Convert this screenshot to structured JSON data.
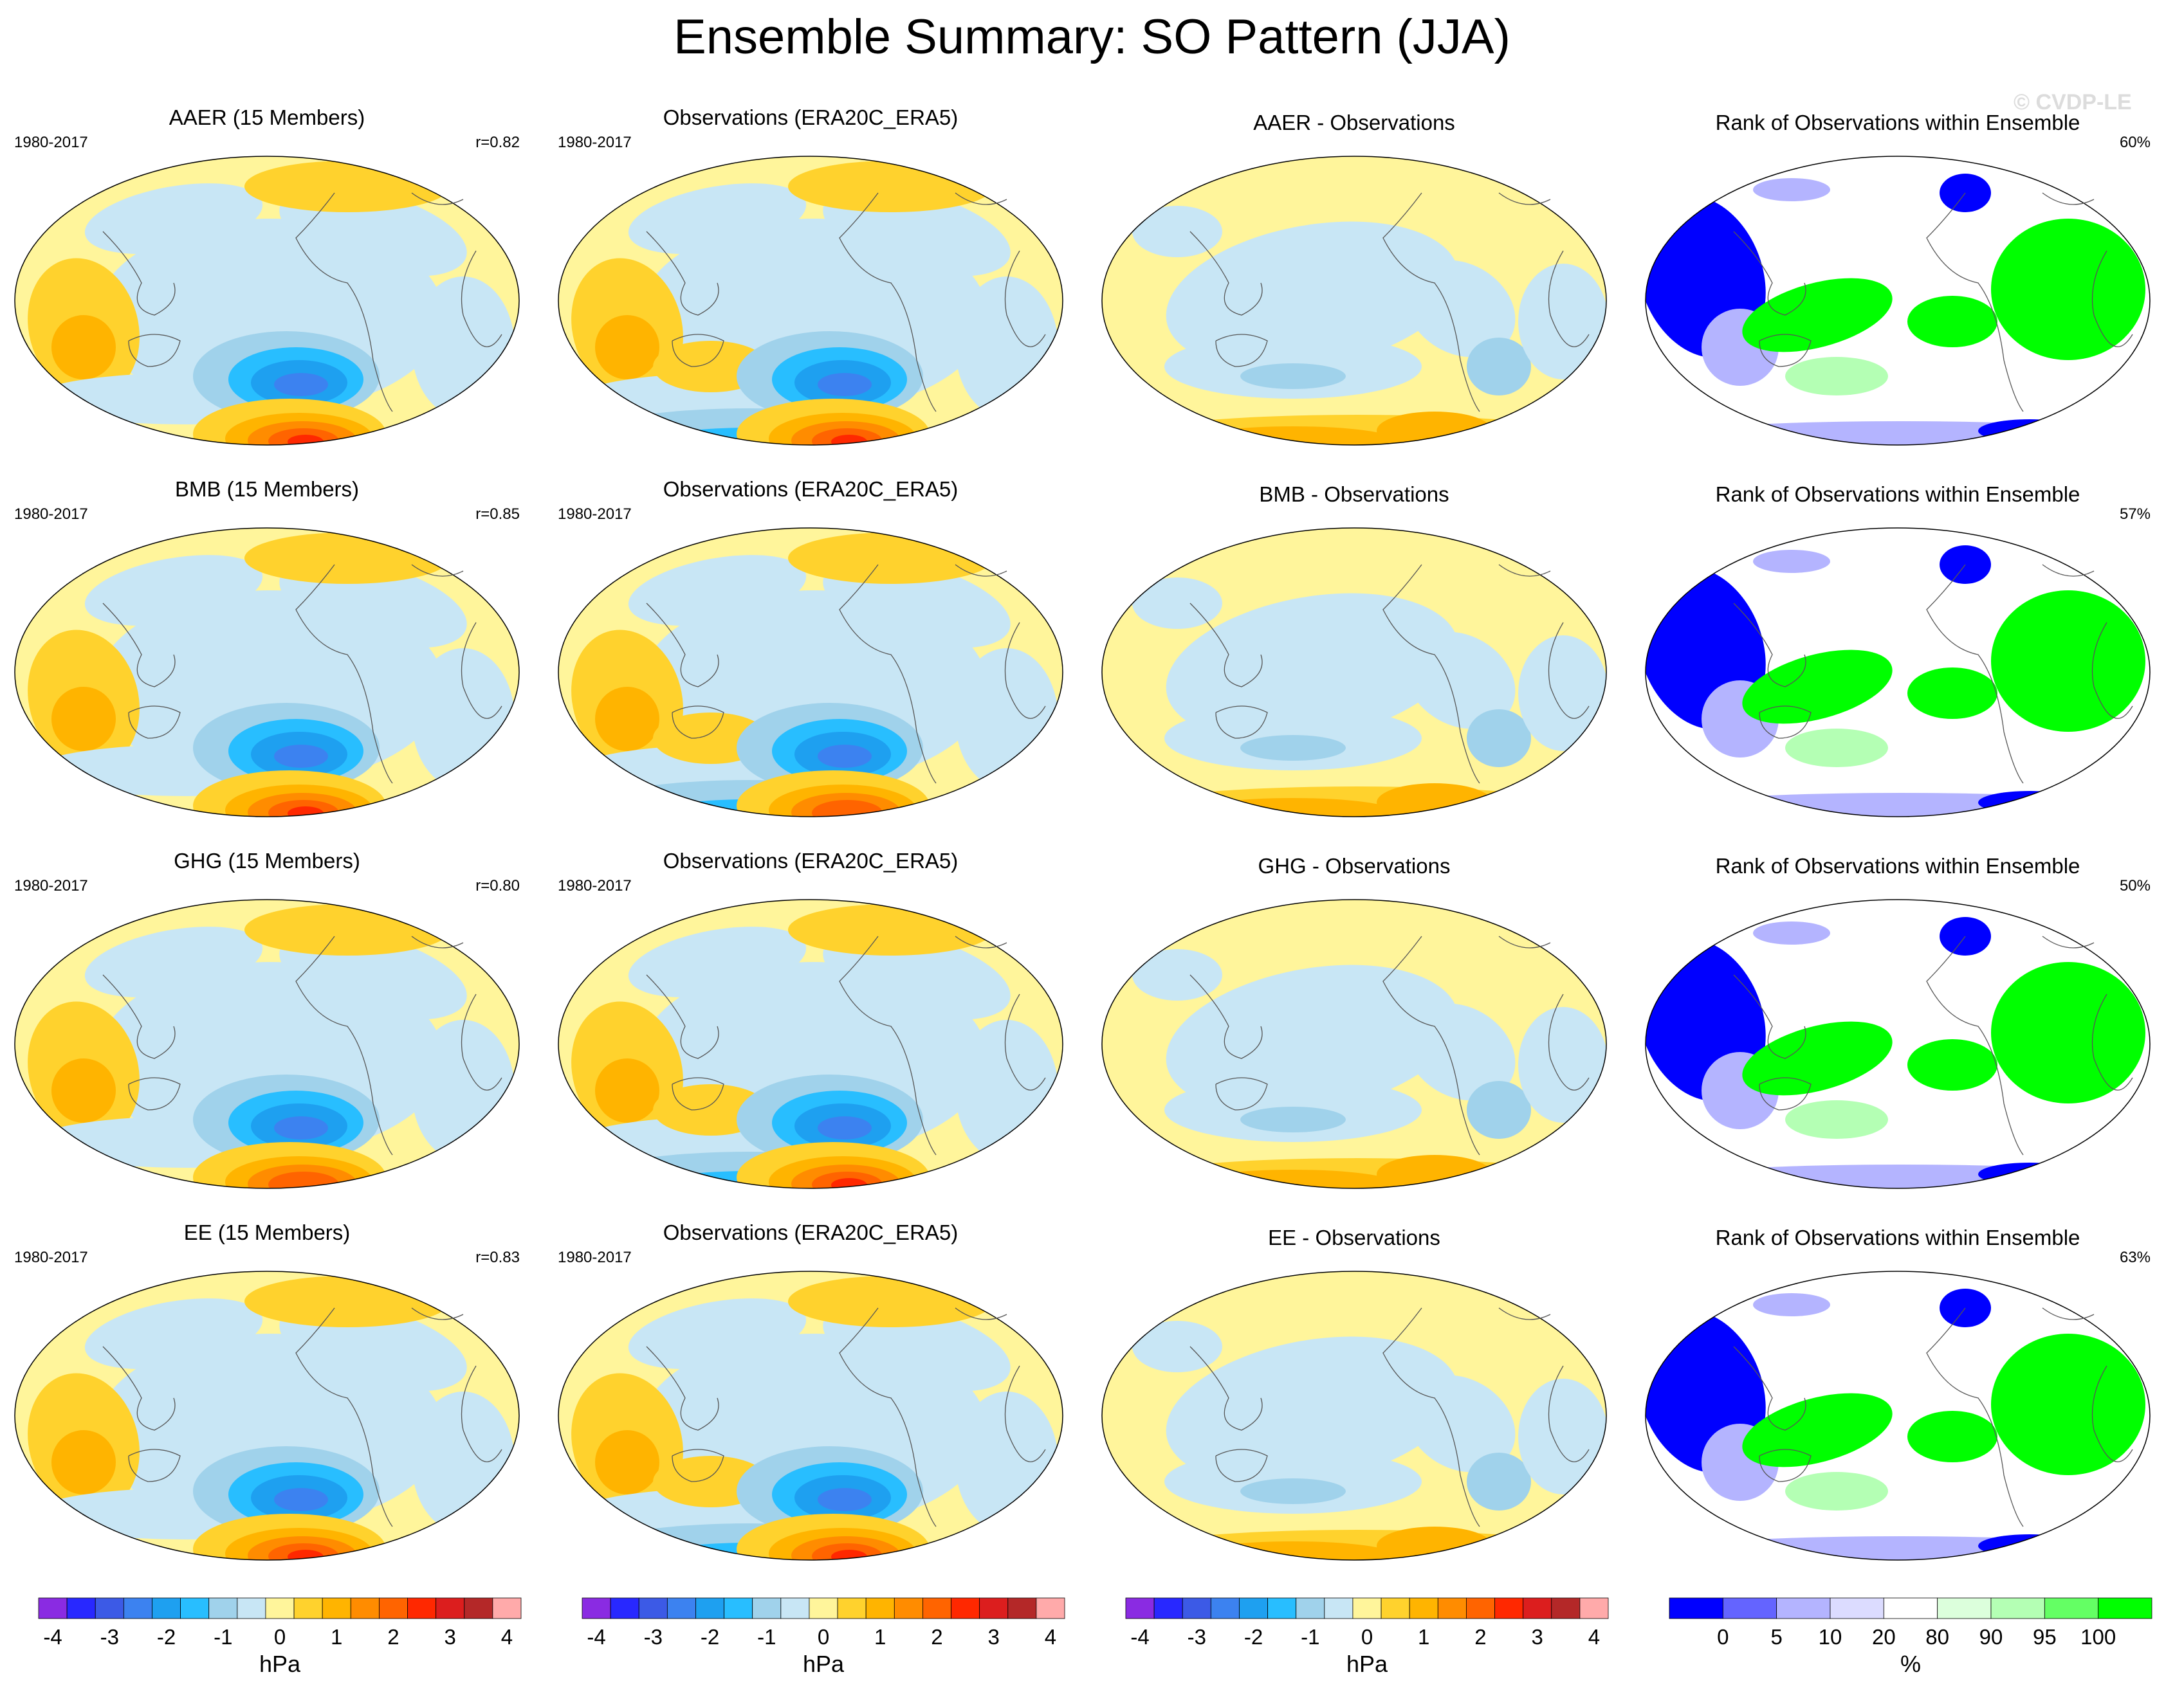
{
  "title": "Ensemble Summary: SO Pattern (JJA)",
  "watermark": "© CVDP-LE",
  "period": "1980-2017",
  "rows": [
    {
      "model": {
        "title": "AAER (15 Members)",
        "corr": "r=0.82"
      },
      "obs": {
        "title": "Observations (ERA20C_ERA5)"
      },
      "diff": {
        "title": "AAER - Observations"
      },
      "rank": {
        "title": "Rank of Observations within Ensemble",
        "percent": "60%"
      }
    },
    {
      "model": {
        "title": "BMB (15 Members)",
        "corr": "r=0.85"
      },
      "obs": {
        "title": "Observations (ERA20C_ERA5)"
      },
      "diff": {
        "title": "BMB - Observations"
      },
      "rank": {
        "title": "Rank of Observations within Ensemble",
        "percent": "57%"
      }
    },
    {
      "model": {
        "title": "GHG (15 Members)",
        "corr": "r=0.80"
      },
      "obs": {
        "title": "Observations (ERA20C_ERA5)"
      },
      "diff": {
        "title": "GHG - Observations"
      },
      "rank": {
        "title": "Rank of Observations within Ensemble",
        "percent": "50%"
      }
    },
    {
      "model": {
        "title": "EE (15 Members)",
        "corr": "r=0.83"
      },
      "obs": {
        "title": "Observations (ERA20C_ERA5)"
      },
      "diff": {
        "title": "EE - Observations"
      },
      "rank": {
        "title": "Rank of Observations within Ensemble",
        "percent": "63%"
      }
    }
  ],
  "colorbars": {
    "hpa": {
      "unit": "hPa",
      "tick_labels": [
        "-4",
        "-3",
        "-2",
        "-1",
        "0",
        "1",
        "2",
        "3",
        "4"
      ],
      "colors": [
        "#8a2be2",
        "#2828ff",
        "#3c5ae6",
        "#3c82f0",
        "#1ea0f0",
        "#28beff",
        "#a0d2eb",
        "#c8e6f5",
        "#fff59b",
        "#ffd22d",
        "#ffb400",
        "#ff8c00",
        "#ff6400",
        "#ff2800",
        "#dc1e1e",
        "#b42828",
        "#ffaaaa"
      ]
    },
    "rank": {
      "unit": "%",
      "tick_labels": [
        "0",
        "5",
        "10",
        "20",
        "80",
        "90",
        "95",
        "100"
      ],
      "colors": [
        "#0000ff",
        "#6464ff",
        "#b4b4ff",
        "#dcdcff",
        "#ffffff",
        "#dcffdc",
        "#b4ffb4",
        "#64ff64",
        "#00ff00"
      ]
    }
  },
  "chart_data": {
    "type": "heatmap",
    "title": "Ensemble Summary: SO Pattern (JJA)",
    "variable": "SO Pattern (JJA)",
    "units": "hPa",
    "contour_levels": [
      -4,
      -3.5,
      -3,
      -2.5,
      -2,
      -1.5,
      -1,
      -0.5,
      0,
      0.5,
      1,
      1.5,
      2,
      2.5,
      3,
      3.5,
      4
    ],
    "panels": [
      {
        "title": "AAER (15 Members)",
        "period": "1980-2017",
        "pattern_correlation": 0.82
      },
      {
        "title": "Observations (ERA20C_ERA5)",
        "period": "1980-2017"
      },
      {
        "title": "AAER - Observations"
      },
      {
        "title": "Rank of Observations within Ensemble",
        "percent": 60
      },
      {
        "title": "BMB (15 Members)",
        "period": "1980-2017",
        "pattern_correlation": 0.85
      },
      {
        "title": "Observations (ERA20C_ERA5)",
        "period": "1980-2017"
      },
      {
        "title": "BMB - Observations"
      },
      {
        "title": "Rank of Observations within Ensemble",
        "percent": 57
      },
      {
        "title": "GHG (15 Members)",
        "period": "1980-2017",
        "pattern_correlation": 0.8
      },
      {
        "title": "Observations (ERA20C_ERA5)",
        "period": "1980-2017"
      },
      {
        "title": "GHG - Observations"
      },
      {
        "title": "Rank of Observations within Ensemble",
        "percent": 50
      },
      {
        "title": "EE (15 Members)",
        "period": "1980-2017",
        "pattern_correlation": 0.83
      },
      {
        "title": "Observations (ERA20C_ERA5)",
        "period": "1980-2017"
      },
      {
        "title": "EE - Observations"
      },
      {
        "title": "Rank of Observations within Ensemble",
        "percent": 63
      }
    ],
    "rank_levels": [
      0,
      5,
      10,
      20,
      80,
      90,
      95,
      100
    ],
    "rank_units": "%"
  }
}
